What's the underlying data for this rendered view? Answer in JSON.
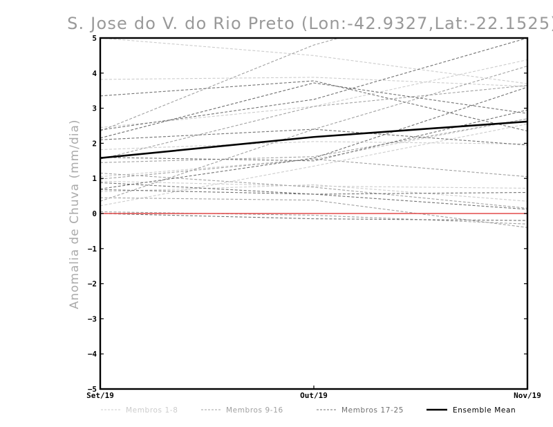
{
  "chart_data": {
    "type": "line",
    "title": "S. Jose do V. do Rio Preto (Lon:-42.9327,Lat:-22.1525)",
    "xlabel": "",
    "ylabel": "Anomalia de Chuva (mm/dia)",
    "categories": [
      "Set/19",
      "Out/19",
      "Nov/19"
    ],
    "ylim": [
      -5,
      5
    ],
    "yticks": [
      "-5",
      "-4",
      "-3",
      "-2",
      "-1",
      "0",
      "1",
      "2",
      "3",
      "4",
      "5"
    ],
    "zero_line_color": "#e24a4a",
    "groups": [
      {
        "name": "Membros 1-8",
        "color": "#cccccc"
      },
      {
        "name": "Membros 9-16",
        "color": "#a0a0a0"
      },
      {
        "name": "Membros 17-25",
        "color": "#707070"
      },
      {
        "name": "Ensemble Mean",
        "color": "#000000"
      }
    ],
    "series": [
      {
        "name": "Membro 1",
        "group": 0,
        "values": [
          3.82,
          3.88,
          3.62
        ]
      },
      {
        "name": "Membro 2",
        "group": 0,
        "values": [
          2.45,
          3.05,
          4.38
        ]
      },
      {
        "name": "Membro 3",
        "group": 0,
        "values": [
          1.82,
          2.05,
          1.98
        ]
      },
      {
        "name": "Membro 4",
        "group": 0,
        "values": [
          1.05,
          1.55,
          2.7
        ]
      },
      {
        "name": "Membro 5",
        "group": 0,
        "values": [
          0.92,
          0.78,
          0.72
        ]
      },
      {
        "name": "Membro 6",
        "group": 0,
        "values": [
          0.62,
          0.82,
          0.35
        ]
      },
      {
        "name": "Membro 7",
        "group": 0,
        "values": [
          0.22,
          1.35,
          2.55
        ]
      },
      {
        "name": "Membro 8",
        "group": 0,
        "values": [
          5.0,
          4.5,
          3.7
        ]
      },
      {
        "name": "Membro 9",
        "group": 1,
        "values": [
          2.35,
          4.8,
          6.5
        ]
      },
      {
        "name": "Membro 10",
        "group": 1,
        "values": [
          1.55,
          3.05,
          3.65
        ]
      },
      {
        "name": "Membro 11",
        "group": 1,
        "values": [
          1.45,
          1.62,
          2.7
        ]
      },
      {
        "name": "Membro 12",
        "group": 1,
        "values": [
          1.15,
          0.75,
          0.15
        ]
      },
      {
        "name": "Membro 13",
        "group": 1,
        "values": [
          0.98,
          1.55,
          1.05
        ]
      },
      {
        "name": "Membro 14",
        "group": 1,
        "values": [
          0.45,
          0.38,
          -0.4
        ]
      },
      {
        "name": "Membro 15",
        "group": 1,
        "values": [
          0.35,
          2.4,
          4.2
        ]
      },
      {
        "name": "Membro 16",
        "group": 1,
        "values": [
          0.05,
          -0.05,
          -0.3
        ]
      },
      {
        "name": "Membro 17",
        "group": 2,
        "values": [
          3.35,
          3.78,
          2.35
        ]
      },
      {
        "name": "Membro 18",
        "group": 2,
        "values": [
          2.38,
          3.25,
          5.0
        ]
      },
      {
        "name": "Membro 19",
        "group": 2,
        "values": [
          2.15,
          3.72,
          2.85
        ]
      },
      {
        "name": "Membro 20",
        "group": 2,
        "values": [
          2.1,
          2.4,
          1.95
        ]
      },
      {
        "name": "Membro 21",
        "group": 2,
        "values": [
          1.6,
          1.5,
          2.95
        ]
      },
      {
        "name": "Membro 22",
        "group": 2,
        "values": [
          0.7,
          1.58,
          3.6
        ]
      },
      {
        "name": "Membro 23",
        "group": 2,
        "values": [
          0.68,
          0.55,
          0.6
        ]
      },
      {
        "name": "Membro 24",
        "group": 2,
        "values": [
          0.88,
          0.55,
          0.12
        ]
      },
      {
        "name": "Membro 25",
        "group": 2,
        "values": [
          0.0,
          -0.15,
          -0.2
        ]
      },
      {
        "name": "Ensemble Mean",
        "group": 3,
        "values": [
          1.58,
          2.18,
          2.62
        ]
      }
    ]
  }
}
